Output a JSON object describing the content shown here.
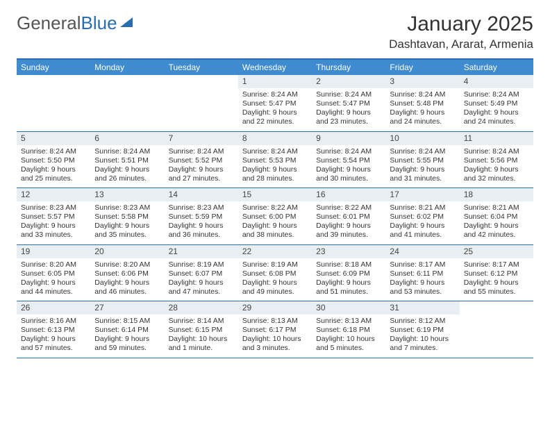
{
  "logo": {
    "text_a": "General",
    "text_b": "Blue"
  },
  "title": "January 2025",
  "location": "Dashtavan, Ararat, Armenia",
  "weekdays": [
    "Sunday",
    "Monday",
    "Tuesday",
    "Wednesday",
    "Thursday",
    "Friday",
    "Saturday"
  ],
  "colors": {
    "header_bg": "#3e8bd0",
    "border": "#2a6db0",
    "daynum_bg": "#e9eef2",
    "text": "#333333",
    "page_bg": "#ffffff"
  },
  "fonts": {
    "title_size_pt": 22,
    "location_size_pt": 13,
    "weekday_size_pt": 9,
    "body_size_pt": 8
  },
  "weeks": [
    [
      {
        "n": "",
        "sr": "",
        "ss": "",
        "dl1": "",
        "dl2": ""
      },
      {
        "n": "",
        "sr": "",
        "ss": "",
        "dl1": "",
        "dl2": ""
      },
      {
        "n": "",
        "sr": "",
        "ss": "",
        "dl1": "",
        "dl2": ""
      },
      {
        "n": "1",
        "sr": "Sunrise: 8:24 AM",
        "ss": "Sunset: 5:47 PM",
        "dl1": "Daylight: 9 hours",
        "dl2": "and 22 minutes."
      },
      {
        "n": "2",
        "sr": "Sunrise: 8:24 AM",
        "ss": "Sunset: 5:47 PM",
        "dl1": "Daylight: 9 hours",
        "dl2": "and 23 minutes."
      },
      {
        "n": "3",
        "sr": "Sunrise: 8:24 AM",
        "ss": "Sunset: 5:48 PM",
        "dl1": "Daylight: 9 hours",
        "dl2": "and 24 minutes."
      },
      {
        "n": "4",
        "sr": "Sunrise: 8:24 AM",
        "ss": "Sunset: 5:49 PM",
        "dl1": "Daylight: 9 hours",
        "dl2": "and 24 minutes."
      }
    ],
    [
      {
        "n": "5",
        "sr": "Sunrise: 8:24 AM",
        "ss": "Sunset: 5:50 PM",
        "dl1": "Daylight: 9 hours",
        "dl2": "and 25 minutes."
      },
      {
        "n": "6",
        "sr": "Sunrise: 8:24 AM",
        "ss": "Sunset: 5:51 PM",
        "dl1": "Daylight: 9 hours",
        "dl2": "and 26 minutes."
      },
      {
        "n": "7",
        "sr": "Sunrise: 8:24 AM",
        "ss": "Sunset: 5:52 PM",
        "dl1": "Daylight: 9 hours",
        "dl2": "and 27 minutes."
      },
      {
        "n": "8",
        "sr": "Sunrise: 8:24 AM",
        "ss": "Sunset: 5:53 PM",
        "dl1": "Daylight: 9 hours",
        "dl2": "and 28 minutes."
      },
      {
        "n": "9",
        "sr": "Sunrise: 8:24 AM",
        "ss": "Sunset: 5:54 PM",
        "dl1": "Daylight: 9 hours",
        "dl2": "and 30 minutes."
      },
      {
        "n": "10",
        "sr": "Sunrise: 8:24 AM",
        "ss": "Sunset: 5:55 PM",
        "dl1": "Daylight: 9 hours",
        "dl2": "and 31 minutes."
      },
      {
        "n": "11",
        "sr": "Sunrise: 8:24 AM",
        "ss": "Sunset: 5:56 PM",
        "dl1": "Daylight: 9 hours",
        "dl2": "and 32 minutes."
      }
    ],
    [
      {
        "n": "12",
        "sr": "Sunrise: 8:23 AM",
        "ss": "Sunset: 5:57 PM",
        "dl1": "Daylight: 9 hours",
        "dl2": "and 33 minutes."
      },
      {
        "n": "13",
        "sr": "Sunrise: 8:23 AM",
        "ss": "Sunset: 5:58 PM",
        "dl1": "Daylight: 9 hours",
        "dl2": "and 35 minutes."
      },
      {
        "n": "14",
        "sr": "Sunrise: 8:23 AM",
        "ss": "Sunset: 5:59 PM",
        "dl1": "Daylight: 9 hours",
        "dl2": "and 36 minutes."
      },
      {
        "n": "15",
        "sr": "Sunrise: 8:22 AM",
        "ss": "Sunset: 6:00 PM",
        "dl1": "Daylight: 9 hours",
        "dl2": "and 38 minutes."
      },
      {
        "n": "16",
        "sr": "Sunrise: 8:22 AM",
        "ss": "Sunset: 6:01 PM",
        "dl1": "Daylight: 9 hours",
        "dl2": "and 39 minutes."
      },
      {
        "n": "17",
        "sr": "Sunrise: 8:21 AM",
        "ss": "Sunset: 6:02 PM",
        "dl1": "Daylight: 9 hours",
        "dl2": "and 41 minutes."
      },
      {
        "n": "18",
        "sr": "Sunrise: 8:21 AM",
        "ss": "Sunset: 6:04 PM",
        "dl1": "Daylight: 9 hours",
        "dl2": "and 42 minutes."
      }
    ],
    [
      {
        "n": "19",
        "sr": "Sunrise: 8:20 AM",
        "ss": "Sunset: 6:05 PM",
        "dl1": "Daylight: 9 hours",
        "dl2": "and 44 minutes."
      },
      {
        "n": "20",
        "sr": "Sunrise: 8:20 AM",
        "ss": "Sunset: 6:06 PM",
        "dl1": "Daylight: 9 hours",
        "dl2": "and 46 minutes."
      },
      {
        "n": "21",
        "sr": "Sunrise: 8:19 AM",
        "ss": "Sunset: 6:07 PM",
        "dl1": "Daylight: 9 hours",
        "dl2": "and 47 minutes."
      },
      {
        "n": "22",
        "sr": "Sunrise: 8:19 AM",
        "ss": "Sunset: 6:08 PM",
        "dl1": "Daylight: 9 hours",
        "dl2": "and 49 minutes."
      },
      {
        "n": "23",
        "sr": "Sunrise: 8:18 AM",
        "ss": "Sunset: 6:09 PM",
        "dl1": "Daylight: 9 hours",
        "dl2": "and 51 minutes."
      },
      {
        "n": "24",
        "sr": "Sunrise: 8:17 AM",
        "ss": "Sunset: 6:11 PM",
        "dl1": "Daylight: 9 hours",
        "dl2": "and 53 minutes."
      },
      {
        "n": "25",
        "sr": "Sunrise: 8:17 AM",
        "ss": "Sunset: 6:12 PM",
        "dl1": "Daylight: 9 hours",
        "dl2": "and 55 minutes."
      }
    ],
    [
      {
        "n": "26",
        "sr": "Sunrise: 8:16 AM",
        "ss": "Sunset: 6:13 PM",
        "dl1": "Daylight: 9 hours",
        "dl2": "and 57 minutes."
      },
      {
        "n": "27",
        "sr": "Sunrise: 8:15 AM",
        "ss": "Sunset: 6:14 PM",
        "dl1": "Daylight: 9 hours",
        "dl2": "and 59 minutes."
      },
      {
        "n": "28",
        "sr": "Sunrise: 8:14 AM",
        "ss": "Sunset: 6:15 PM",
        "dl1": "Daylight: 10 hours",
        "dl2": "and 1 minute."
      },
      {
        "n": "29",
        "sr": "Sunrise: 8:13 AM",
        "ss": "Sunset: 6:17 PM",
        "dl1": "Daylight: 10 hours",
        "dl2": "and 3 minutes."
      },
      {
        "n": "30",
        "sr": "Sunrise: 8:13 AM",
        "ss": "Sunset: 6:18 PM",
        "dl1": "Daylight: 10 hours",
        "dl2": "and 5 minutes."
      },
      {
        "n": "31",
        "sr": "Sunrise: 8:12 AM",
        "ss": "Sunset: 6:19 PM",
        "dl1": "Daylight: 10 hours",
        "dl2": "and 7 minutes."
      },
      {
        "n": "",
        "sr": "",
        "ss": "",
        "dl1": "",
        "dl2": ""
      }
    ]
  ]
}
